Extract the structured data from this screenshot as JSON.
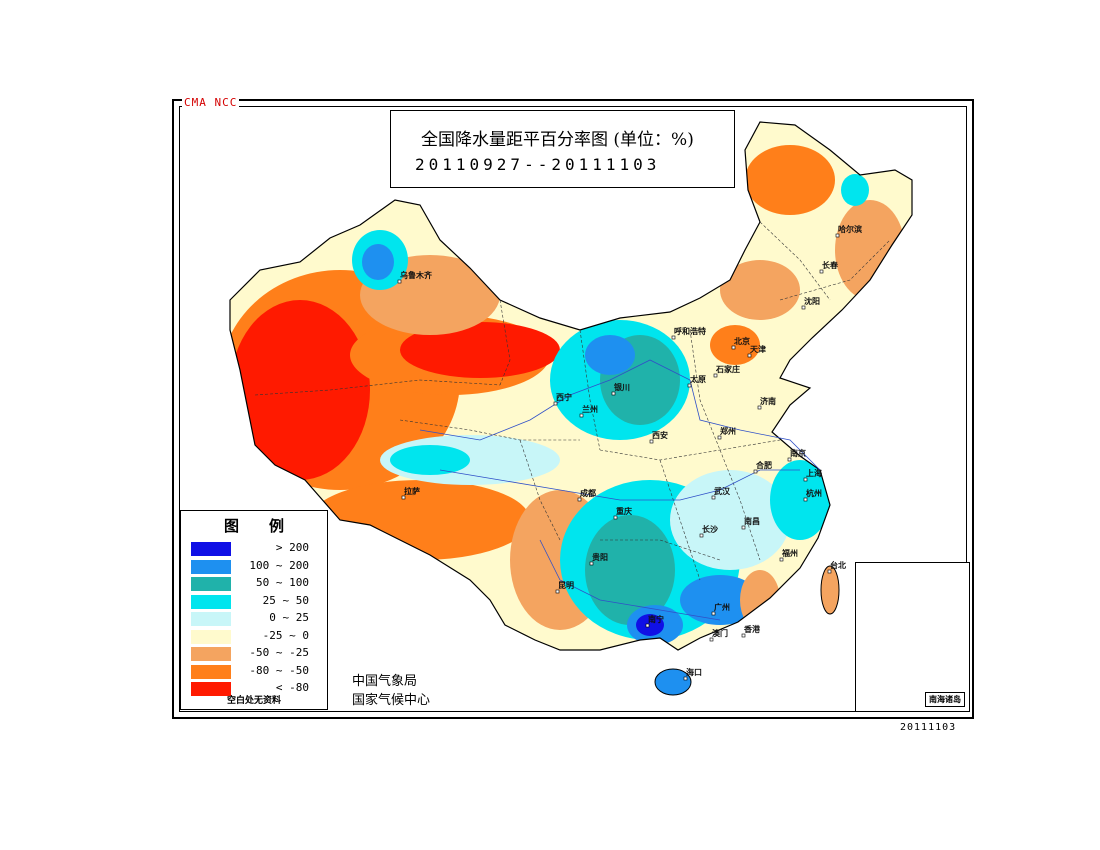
{
  "watermark": "CMA NCC",
  "title": "全国降水量距平百分率图 (单位：%)",
  "date_range": "20110927--20111103",
  "legend": {
    "title": "图例",
    "items": [
      {
        "label": "> 200",
        "color": "#1010e6"
      },
      {
        "label": "100 ~ 200",
        "color": "#1e90f0"
      },
      {
        "label": "50 ~ 100",
        "color": "#20b2aa"
      },
      {
        "label": "25 ~ 50",
        "color": "#00e5ee"
      },
      {
        "label": "0 ~ 25",
        "color": "#c8f6f8"
      },
      {
        "label": "-25 ~ 0",
        "color": "#fffacd"
      },
      {
        "label": "-50 ~ -25",
        "color": "#f4a460"
      },
      {
        "label": "-80 ~ -50",
        "color": "#ff7f1a"
      },
      {
        "label": "< -80",
        "color": "#ff1a00"
      }
    ],
    "note": "空白处无资料"
  },
  "agency": [
    "中国气象局",
    "国家气候中心"
  ],
  "inset_label": "南海诸岛",
  "issue_date": "20111103",
  "cities": [
    {
      "name": "乌鲁木齐"
    },
    {
      "name": "哈尔滨"
    },
    {
      "name": "长春"
    },
    {
      "name": "沈阳"
    },
    {
      "name": "呼和浩特"
    },
    {
      "name": "北京"
    },
    {
      "name": "天津"
    },
    {
      "name": "银川"
    },
    {
      "name": "太原"
    },
    {
      "name": "石家庄"
    },
    {
      "name": "济南"
    },
    {
      "name": "西宁"
    },
    {
      "name": "兰州"
    },
    {
      "name": "西安"
    },
    {
      "name": "郑州"
    },
    {
      "name": "合肥"
    },
    {
      "name": "南京"
    },
    {
      "name": "上海"
    },
    {
      "name": "拉萨"
    },
    {
      "name": "成都"
    },
    {
      "name": "重庆"
    },
    {
      "name": "武汉"
    },
    {
      "name": "杭州"
    },
    {
      "name": "长沙"
    },
    {
      "name": "南昌"
    },
    {
      "name": "福州"
    },
    {
      "name": "贵阳"
    },
    {
      "name": "昆明"
    },
    {
      "name": "台北"
    },
    {
      "name": "南宁"
    },
    {
      "name": "广州"
    },
    {
      "name": "澳门"
    },
    {
      "name": "香港"
    },
    {
      "name": "海口"
    }
  ]
}
